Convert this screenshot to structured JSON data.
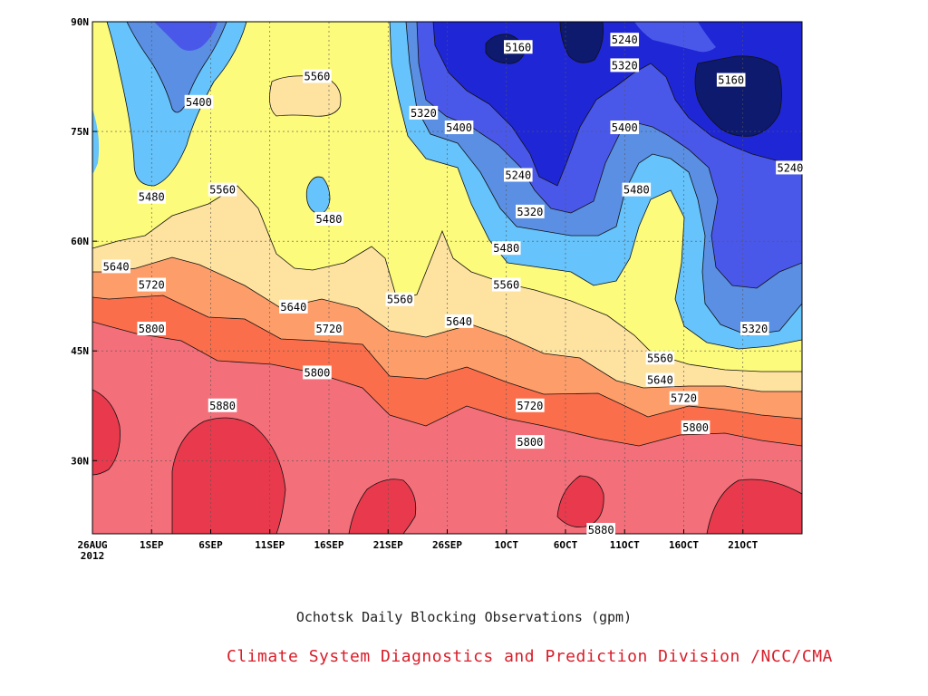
{
  "chart_data": {
    "type": "contour",
    "variable_unit": "gpm",
    "x_ticks": [
      "26AUG\n2012",
      "1SEP",
      "6SEP",
      "11SEP",
      "16SEP",
      "21SEP",
      "26SEP",
      "1OCT",
      "6OCT",
      "11OCT",
      "16OCT",
      "21OCT"
    ],
    "x_range": [
      "2012-08-26",
      "2012-10-25"
    ],
    "y_ticks": [
      "30N",
      "45N",
      "60N",
      "75N",
      "90N"
    ],
    "y_range": [
      20,
      90
    ],
    "grid": true,
    "contour_levels": [
      5160,
      5240,
      5320,
      5400,
      5480,
      5560,
      5640,
      5720,
      5800,
      5880
    ],
    "contour_labels": [
      {
        "value": "5160",
        "date": "2012-10-01",
        "lat": 86.5
      },
      {
        "value": "5160",
        "date": "2012-10-19",
        "lat": 82
      },
      {
        "value": "5240",
        "date": "2012-10-10",
        "lat": 87.5
      },
      {
        "value": "5240",
        "date": "2012-10-24",
        "lat": 70
      },
      {
        "value": "5240",
        "date": "2012-10-01",
        "lat": 69
      },
      {
        "value": "5320",
        "date": "2012-09-23",
        "lat": 77.5
      },
      {
        "value": "5320",
        "date": "2012-10-10",
        "lat": 84
      },
      {
        "value": "5320",
        "date": "2012-10-02",
        "lat": 64
      },
      {
        "value": "5320",
        "date": "2012-10-21",
        "lat": 48
      },
      {
        "value": "5400",
        "date": "2012-09-04",
        "lat": 79
      },
      {
        "value": "5400",
        "date": "2012-09-26",
        "lat": 75.5
      },
      {
        "value": "5400",
        "date": "2012-10-10",
        "lat": 75.5
      },
      {
        "value": "5480",
        "date": "2012-08-31",
        "lat": 66
      },
      {
        "value": "5480",
        "date": "2012-09-15",
        "lat": 63
      },
      {
        "value": "5480",
        "date": "2012-10-11",
        "lat": 67
      },
      {
        "value": "5480",
        "date": "2012-09-30",
        "lat": 59
      },
      {
        "value": "5560",
        "date": "2012-09-06",
        "lat": 67
      },
      {
        "value": "5560",
        "date": "2012-09-14",
        "lat": 82.5
      },
      {
        "value": "5560",
        "date": "2012-09-21",
        "lat": 52
      },
      {
        "value": "5560",
        "date": "2012-09-30",
        "lat": 54
      },
      {
        "value": "5560",
        "date": "2012-10-13",
        "lat": 44
      },
      {
        "value": "5640",
        "date": "2012-08-28",
        "lat": 56.5
      },
      {
        "value": "5640",
        "date": "2012-09-12",
        "lat": 51
      },
      {
        "value": "5640",
        "date": "2012-09-26",
        "lat": 49
      },
      {
        "value": "5640",
        "date": "2012-10-13",
        "lat": 41
      },
      {
        "value": "5720",
        "date": "2012-08-31",
        "lat": 54
      },
      {
        "value": "5720",
        "date": "2012-09-15",
        "lat": 48
      },
      {
        "value": "5720",
        "date": "2012-10-02",
        "lat": 37.5
      },
      {
        "value": "5720",
        "date": "2012-10-15",
        "lat": 38.5
      },
      {
        "value": "5800",
        "date": "2012-08-31",
        "lat": 48
      },
      {
        "value": "5800",
        "date": "2012-09-14",
        "lat": 42
      },
      {
        "value": "5800",
        "date": "2012-10-02",
        "lat": 32.5
      },
      {
        "value": "5800",
        "date": "2012-10-16",
        "lat": 34.5
      },
      {
        "value": "5880",
        "date": "2012-09-06",
        "lat": 37.5
      },
      {
        "value": "5880",
        "date": "2012-10-08",
        "lat": 20.5
      }
    ],
    "fill_colors": [
      "#0d1a6e",
      "#1f26d6",
      "#4a58ea",
      "#5b8fe3",
      "#66c3fb",
      "#fdfb7c",
      "#fde2a0",
      "#fd9e6a",
      "#fb6e4c",
      "#f36f7a",
      "#e83a4c"
    ]
  },
  "captions": {
    "title": "Ochotsk Daily Blocking Observations (gpm)",
    "source": "Climate System Diagnostics and Prediction Division /NCC/CMA"
  }
}
